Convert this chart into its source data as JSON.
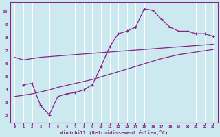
{
  "xlabel": "Windchill (Refroidissement éolien,°C)",
  "bg_color": "#cce9f0",
  "line_color": "#882288",
  "grid_color": "#ffffff",
  "xlim": [
    -0.5,
    23.5
  ],
  "ylim": [
    1.5,
    10.7
  ],
  "yticks": [
    2,
    3,
    4,
    5,
    6,
    7,
    8,
    9,
    10
  ],
  "xticks": [
    0,
    1,
    2,
    3,
    4,
    5,
    6,
    7,
    8,
    9,
    10,
    11,
    12,
    13,
    14,
    15,
    16,
    17,
    18,
    19,
    20,
    21,
    22,
    23
  ],
  "curve1_x": [
    0,
    1,
    2,
    3,
    4,
    5,
    6,
    7,
    8,
    9,
    10,
    11,
    12,
    13,
    14,
    15,
    16,
    17,
    18,
    19,
    20,
    21,
    22,
    23
  ],
  "curve1_y": [
    6.5,
    6.3,
    6.4,
    6.5,
    6.55,
    6.6,
    6.65,
    6.7,
    6.75,
    6.8,
    6.85,
    6.9,
    6.95,
    7.0,
    7.05,
    7.1,
    7.15,
    7.2,
    7.25,
    7.3,
    7.35,
    7.4,
    7.45,
    7.5
  ],
  "curve2_x": [
    1,
    2,
    3,
    4,
    5,
    6,
    7,
    8,
    9,
    10,
    11,
    12,
    13,
    14,
    15,
    16,
    17,
    18,
    19,
    20,
    21,
    22,
    23
  ],
  "curve2_y": [
    4.4,
    4.5,
    2.8,
    2.1,
    3.5,
    3.7,
    3.8,
    4.0,
    4.4,
    5.8,
    7.3,
    8.3,
    8.5,
    8.8,
    10.2,
    10.1,
    9.4,
    8.8,
    8.5,
    8.5,
    8.3,
    8.3,
    8.1
  ],
  "curve3_x": [
    0,
    1,
    2,
    3,
    4,
    5,
    6,
    7,
    8,
    9,
    10,
    11,
    12,
    13,
    14,
    15,
    16,
    17,
    18,
    19,
    20,
    21,
    22,
    23
  ],
  "curve3_y": [
    3.5,
    3.6,
    3.7,
    3.85,
    4.0,
    4.2,
    4.35,
    4.5,
    4.65,
    4.8,
    5.0,
    5.2,
    5.4,
    5.6,
    5.8,
    6.0,
    6.2,
    6.4,
    6.55,
    6.7,
    6.8,
    6.9,
    7.0,
    7.1
  ]
}
